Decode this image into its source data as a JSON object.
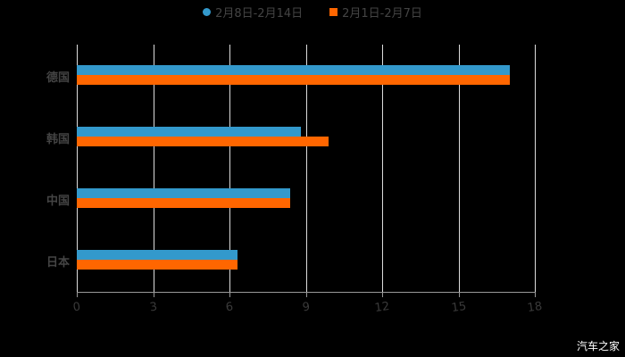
{
  "legend": [
    {
      "label": "2月8日-2月14日",
      "color": "#3399cc",
      "marker": "circle"
    },
    {
      "label": "2月1日-2月7日",
      "color": "#ff6600",
      "marker": "square"
    }
  ],
  "watermark": "汽车之家",
  "chart_data": {
    "type": "bar",
    "orientation": "horizontal",
    "title": "",
    "categories": [
      "德国",
      "韩国",
      "中国",
      "日本"
    ],
    "series": [
      {
        "name": "2月8日-2月14日",
        "color": "#3399cc",
        "values": [
          17.0,
          8.8,
          8.4,
          6.3
        ]
      },
      {
        "name": "2月1日-2月7日",
        "color": "#ff6600",
        "values": [
          17.0,
          9.9,
          8.4,
          6.3
        ]
      }
    ],
    "xlabel": "",
    "ylabel": "",
    "xlim": [
      0,
      18
    ],
    "xticks": [
      "0",
      "3",
      "6",
      "9",
      "12",
      "15",
      "18"
    ],
    "grid": true,
    "legend_position": "top"
  }
}
